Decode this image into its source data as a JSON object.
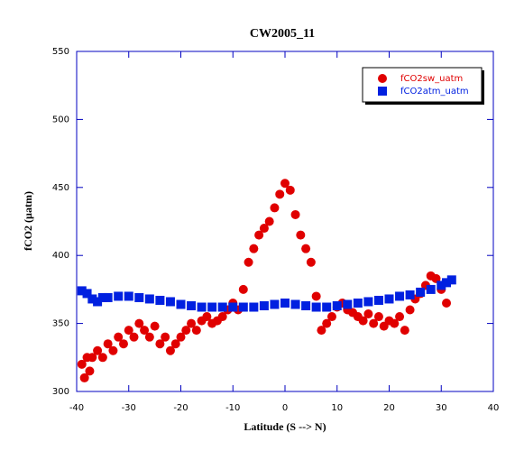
{
  "chart_data": {
    "type": "scatter",
    "title": "CW2005_11",
    "x_label": "Latitude (S --> N)",
    "y_label": "fCO2 (µatm)",
    "xlim": [
      -40,
      40
    ],
    "xticks": [
      -40,
      -30,
      -20,
      -10,
      0,
      10,
      20,
      30,
      40
    ],
    "ylim": [
      300,
      550
    ],
    "yticks": [
      300,
      350,
      400,
      450,
      500,
      550
    ],
    "legend": "upper right",
    "series": [
      {
        "name": "fCO2sw_uatm",
        "color": "#e00000",
        "marker": "circle",
        "x": [
          -39,
          -38.5,
          -38,
          -37.5,
          -37,
          -36,
          -35,
          -34,
          -33,
          -32,
          -31,
          -30,
          -29,
          -28,
          -27,
          -26,
          -25,
          -24,
          -23,
          -22,
          -21,
          -20,
          -19,
          -18,
          -17,
          -16,
          -15,
          -14,
          -13,
          -12,
          -11,
          -10,
          -9,
          -8,
          -7,
          -6,
          -5,
          -4,
          -3,
          -2,
          -1,
          0,
          1,
          2,
          3,
          4,
          5,
          6,
          7,
          8,
          9,
          10,
          11,
          12,
          13,
          14,
          15,
          16,
          17,
          18,
          19,
          20,
          21,
          22,
          23,
          24,
          25,
          26,
          27,
          28,
          29,
          30,
          31
        ],
        "values": [
          320,
          310,
          325,
          315,
          325,
          330,
          325,
          335,
          330,
          340,
          335,
          345,
          340,
          350,
          345,
          340,
          348,
          335,
          340,
          330,
          335,
          340,
          345,
          350,
          345,
          352,
          355,
          350,
          352,
          355,
          360,
          365,
          360,
          375,
          395,
          405,
          415,
          420,
          425,
          435,
          445,
          453,
          448,
          430,
          415,
          405,
          395,
          370,
          345,
          350,
          355,
          362,
          365,
          360,
          358,
          355,
          352,
          357,
          350,
          355,
          348,
          352,
          350,
          355,
          345,
          360,
          368,
          372,
          378,
          385,
          383,
          375,
          365
        ]
      },
      {
        "name": "fCO2atm_uatm",
        "color": "#0020e0",
        "marker": "square",
        "x": [
          -39,
          -38,
          -37,
          -36,
          -35,
          -34,
          -32,
          -30,
          -28,
          -26,
          -24,
          -22,
          -20,
          -18,
          -16,
          -14,
          -12,
          -10,
          -8,
          -6,
          -4,
          -2,
          0,
          2,
          4,
          6,
          8,
          10,
          12,
          14,
          16,
          18,
          20,
          22,
          24,
          26,
          28,
          30,
          31,
          32
        ],
        "values": [
          374,
          372,
          368,
          366,
          369,
          369,
          370,
          370,
          369,
          368,
          367,
          366,
          364,
          363,
          362,
          362,
          362,
          362,
          362,
          362,
          363,
          364,
          365,
          364,
          363,
          362,
          362,
          363,
          364,
          365,
          366,
          367,
          368,
          370,
          371,
          373,
          375,
          378,
          380,
          382
        ]
      }
    ]
  }
}
